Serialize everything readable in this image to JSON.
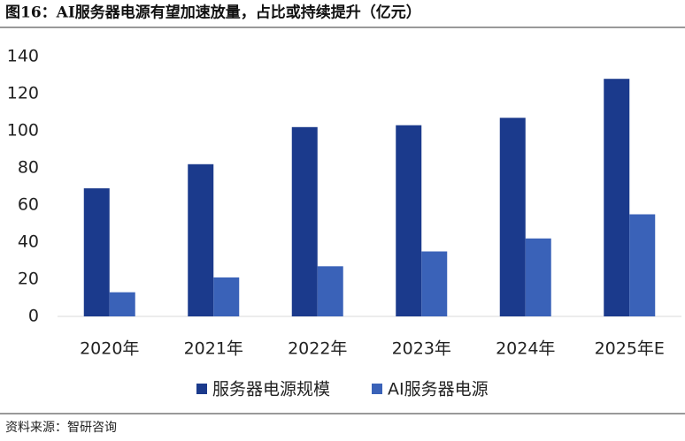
{
  "chart_data": {
    "type": "bar",
    "title": "图16：AI服务器电源有望加速放量，占比或持续提升（亿元）",
    "source": "资料来源：智研咨询",
    "categories": [
      "2020年",
      "2021年",
      "2022年",
      "2023年",
      "2024年",
      "2025年E"
    ],
    "series": [
      {
        "name": "服务器电源规模",
        "color": "#1b3a8c",
        "values": [
          69,
          82,
          102,
          103,
          107,
          128
        ]
      },
      {
        "name": "AI服务器电源",
        "color": "#3a62b8",
        "values": [
          13,
          21,
          27,
          35,
          42,
          55
        ]
      }
    ],
    "ylim": [
      0,
      140
    ],
    "yticks": [
      0,
      20,
      40,
      60,
      80,
      100,
      120,
      140
    ],
    "grid": false
  }
}
